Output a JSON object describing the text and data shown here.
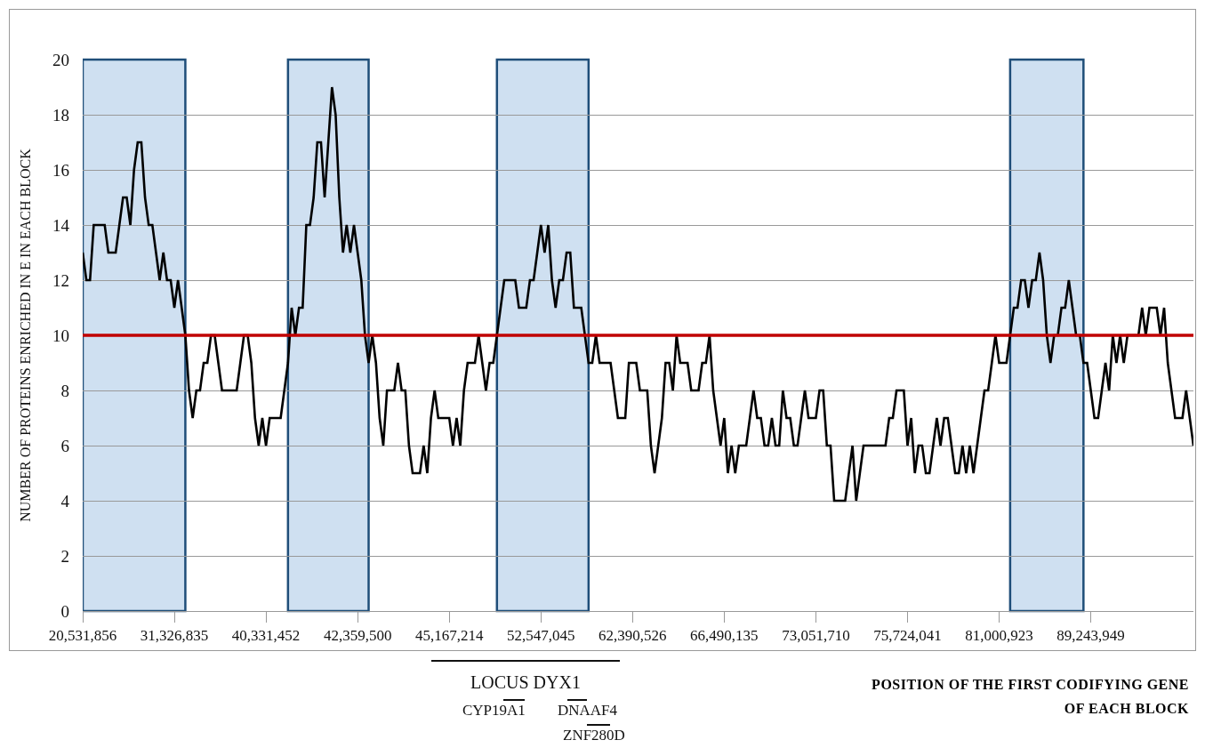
{
  "chart_data": {
    "type": "line",
    "ylabel": "NUMBER OF PROTEINS ENRICHED IN E IN EACH BLOCK",
    "xlabel": "POSITION OF THE FIRST CODIFYING GENE OF EACH BLOCK",
    "annotations": [
      "LOCUS DYX1",
      "CYP19A1",
      "DNAAF4",
      "ZNF280D"
    ],
    "categories": [
      "20,531,856",
      null,
      null,
      null,
      null,
      null,
      null,
      null,
      null,
      null,
      null,
      null,
      null,
      null,
      null,
      null,
      null,
      null,
      null,
      null,
      null,
      null,
      null,
      null,
      null,
      "31,326,835",
      null,
      null,
      null,
      null,
      null,
      null,
      null,
      null,
      null,
      null,
      null,
      null,
      null,
      null,
      null,
      null,
      null,
      null,
      null,
      null,
      null,
      null,
      null,
      null,
      "40,331,452",
      null,
      null,
      null,
      null,
      null,
      null,
      null,
      null,
      null,
      null,
      null,
      null,
      null,
      null,
      null,
      null,
      null,
      null,
      null,
      null,
      null,
      null,
      null,
      null,
      "42,359,500",
      null,
      null,
      null,
      null,
      null,
      null,
      null,
      null,
      null,
      null,
      null,
      null,
      null,
      null,
      null,
      null,
      null,
      null,
      null,
      null,
      null,
      null,
      null,
      null,
      "45,167,214",
      null,
      null,
      null,
      null,
      null,
      null,
      null,
      null,
      null,
      null,
      null,
      null,
      null,
      null,
      null,
      null,
      null,
      null,
      null,
      null,
      null,
      null,
      null,
      null,
      "52,547,045",
      null,
      null,
      null,
      null,
      null,
      null,
      null,
      null,
      null,
      null,
      null,
      null,
      null,
      null,
      null,
      null,
      null,
      null,
      null,
      null,
      null,
      null,
      null,
      null,
      "62,390,526",
      null,
      null,
      null,
      null,
      null,
      null,
      null,
      null,
      null,
      null,
      null,
      null,
      null,
      null,
      null,
      null,
      null,
      null,
      null,
      null,
      null,
      null,
      null,
      null,
      "66,490,135",
      null,
      null,
      null,
      null,
      null,
      null,
      null,
      null,
      null,
      null,
      null,
      null,
      null,
      null,
      null,
      null,
      null,
      null,
      null,
      null,
      null,
      null,
      null,
      null,
      "73,051,710",
      null,
      null,
      null,
      null,
      null,
      null,
      null,
      null,
      null,
      null,
      null,
      null,
      null,
      null,
      null,
      null,
      null,
      null,
      null,
      null,
      null,
      null,
      null,
      null,
      "75,724,041",
      null,
      null,
      null,
      null,
      null,
      null,
      null,
      null,
      null,
      null,
      null,
      null,
      null,
      null,
      null,
      null,
      null,
      null,
      null,
      null,
      null,
      null,
      null,
      null,
      "81,000,923",
      null,
      null,
      null,
      null,
      null,
      null,
      null,
      null,
      null,
      null,
      null,
      null,
      null,
      null,
      null,
      null,
      null,
      null,
      null,
      null,
      null,
      null,
      null,
      null,
      "89,243,949",
      null,
      null,
      null,
      null,
      null,
      null,
      null,
      null,
      null,
      null,
      null,
      null,
      null,
      null,
      null,
      null,
      null,
      null,
      null,
      null,
      null,
      null,
      null,
      null,
      null,
      null,
      null,
      null
    ],
    "ylim": [
      0,
      20
    ],
    "yticks": [
      0,
      2,
      4,
      6,
      8,
      10,
      12,
      14,
      16,
      18,
      20
    ],
    "grid": "y",
    "color": "#000000",
    "values": [
      13,
      12,
      12,
      14,
      14,
      14,
      14,
      13,
      13,
      13,
      14,
      15,
      15,
      14,
      16,
      17,
      17,
      15,
      14,
      14,
      13,
      12,
      13,
      12,
      12,
      11,
      12,
      11,
      10,
      8,
      7,
      8,
      8,
      9,
      9,
      10,
      10,
      9,
      8,
      8,
      8,
      8,
      8,
      9,
      10,
      10,
      9,
      7,
      6,
      7,
      6,
      7,
      7,
      7,
      7,
      8,
      9,
      11,
      10,
      11,
      11,
      14,
      14,
      15,
      17,
      17,
      15,
      17,
      19,
      18,
      15,
      13,
      14,
      13,
      14,
      13,
      12,
      10,
      9,
      10,
      9,
      7,
      6,
      8,
      8,
      8,
      9,
      8,
      8,
      6,
      5,
      5,
      5,
      6,
      5,
      7,
      8,
      7,
      7,
      7,
      7,
      6,
      7,
      6,
      8,
      9,
      9,
      9,
      10,
      9,
      8,
      9,
      9,
      10,
      11,
      12,
      12,
      12,
      12,
      11,
      11,
      11,
      12,
      12,
      13,
      14,
      13,
      14,
      12,
      11,
      12,
      12,
      13,
      13,
      11,
      11,
      11,
      10,
      9,
      9,
      10,
      9,
      9,
      9,
      9,
      8,
      7,
      7,
      7,
      9,
      9,
      9,
      8,
      8,
      8,
      6,
      5,
      6,
      7,
      9,
      9,
      8,
      10,
      9,
      9,
      9,
      8,
      8,
      8,
      9,
      9,
      10,
      8,
      7,
      6,
      7,
      5,
      6,
      5,
      6,
      6,
      6,
      7,
      8,
      7,
      7,
      6,
      6,
      7,
      6,
      6,
      8,
      7,
      7,
      6,
      6,
      7,
      8,
      7,
      7,
      7,
      8,
      8,
      6,
      6,
      4,
      4,
      4,
      4,
      5,
      6,
      4,
      5,
      6,
      6,
      6,
      6,
      6,
      6,
      6,
      7,
      7,
      8,
      8,
      8,
      6,
      7,
      5,
      6,
      6,
      5,
      5,
      6,
      7,
      6,
      7,
      7,
      6,
      5,
      5,
      6,
      5,
      6,
      5,
      6,
      7,
      8,
      8,
      9,
      10,
      9,
      9,
      9,
      10,
      11,
      11,
      12,
      12,
      11,
      12,
      12,
      13,
      12,
      10,
      9,
      10,
      10,
      11,
      11,
      12,
      11,
      10,
      10,
      9,
      9,
      8,
      7,
      7,
      8,
      9,
      8,
      10,
      9,
      10,
      9,
      10,
      10,
      10,
      10,
      11,
      10,
      11,
      11,
      11,
      10,
      11,
      9,
      8,
      7,
      7,
      7,
      8,
      7,
      6
    ],
    "ref_lines": [
      {
        "axis": "y",
        "value": 10,
        "color": "#c00000"
      }
    ]
  }
}
